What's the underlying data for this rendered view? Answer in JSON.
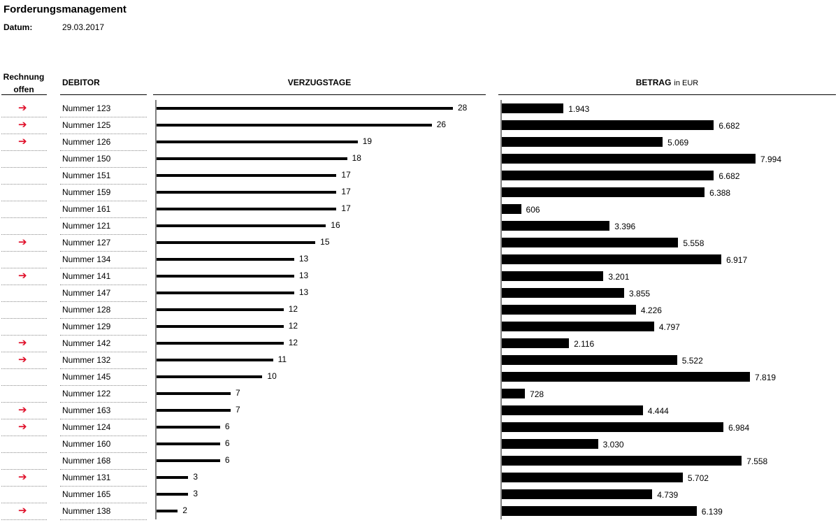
{
  "title": "Forderungsmanagement",
  "date_label": "Datum:",
  "date_value": "29.03.2017",
  "headers": {
    "open_line1": "Rechnung",
    "open_line2": "offen",
    "debitor": "DEBITOR",
    "days": "VERZUGSTAGE",
    "amount": "BETRAG",
    "amount_unit": "in EUR"
  },
  "colors": {
    "arrow": "#e0102a",
    "bar": "#000000",
    "axis": "#808080"
  },
  "arrow_icon": "arrow-right-icon",
  "chart_data": [
    {
      "type": "bar",
      "orientation": "horizontal",
      "title": "VERZUGSTAGE",
      "categories": [
        "Nummer 123",
        "Nummer 125",
        "Nummer 126",
        "Nummer 150",
        "Nummer 151",
        "Nummer 159",
        "Nummer 161",
        "Nummer 121",
        "Nummer 127",
        "Nummer 134",
        "Nummer 141",
        "Nummer 147",
        "Nummer 128",
        "Nummer 129",
        "Nummer 142",
        "Nummer 132",
        "Nummer 145",
        "Nummer 122",
        "Nummer 163",
        "Nummer 124",
        "Nummer 160",
        "Nummer 168",
        "Nummer 131",
        "Nummer 165",
        "Nummer 138"
      ],
      "values": [
        28,
        26,
        19,
        18,
        17,
        17,
        17,
        16,
        15,
        13,
        13,
        13,
        12,
        12,
        12,
        11,
        10,
        7,
        7,
        6,
        6,
        6,
        3,
        3,
        2
      ],
      "labels": [
        "28",
        "26",
        "19",
        "18",
        "17",
        "17",
        "17",
        "16",
        "15",
        "13",
        "13",
        "13",
        "12",
        "12",
        "12",
        "11",
        "10",
        "7",
        "7",
        "6",
        "6",
        "6",
        "3",
        "3",
        "2"
      ],
      "xlim": [
        0,
        30
      ]
    },
    {
      "type": "bar",
      "orientation": "horizontal",
      "title": "BETRAG in EUR",
      "categories": [
        "Nummer 123",
        "Nummer 125",
        "Nummer 126",
        "Nummer 150",
        "Nummer 151",
        "Nummer 159",
        "Nummer 161",
        "Nummer 121",
        "Nummer 127",
        "Nummer 134",
        "Nummer 141",
        "Nummer 147",
        "Nummer 128",
        "Nummer 129",
        "Nummer 142",
        "Nummer 132",
        "Nummer 145",
        "Nummer 122",
        "Nummer 163",
        "Nummer 124",
        "Nummer 160",
        "Nummer 168",
        "Nummer 131",
        "Nummer 165",
        "Nummer 138"
      ],
      "values": [
        1943,
        6682,
        5069,
        7994,
        6682,
        6388,
        606,
        3396,
        5558,
        6917,
        3201,
        3855,
        4226,
        4797,
        2116,
        5522,
        7819,
        728,
        4444,
        6984,
        3030,
        7558,
        5702,
        4739,
        6139
      ],
      "labels": [
        "1.943",
        "6.682",
        "5.069",
        "7.994",
        "6.682",
        "6.388",
        "606",
        "3.396",
        "5.558",
        "6.917",
        "3.201",
        "3.855",
        "4.226",
        "4.797",
        "2.116",
        "5.522",
        "7.819",
        "728",
        "4.444",
        "6.984",
        "3.030",
        "7.558",
        "5.702",
        "4.739",
        "6.139"
      ],
      "xlim": [
        0,
        8000
      ]
    }
  ],
  "open_flags": [
    true,
    true,
    true,
    false,
    false,
    false,
    false,
    false,
    true,
    false,
    true,
    false,
    false,
    false,
    true,
    true,
    false,
    false,
    true,
    true,
    false,
    false,
    true,
    false,
    true
  ]
}
